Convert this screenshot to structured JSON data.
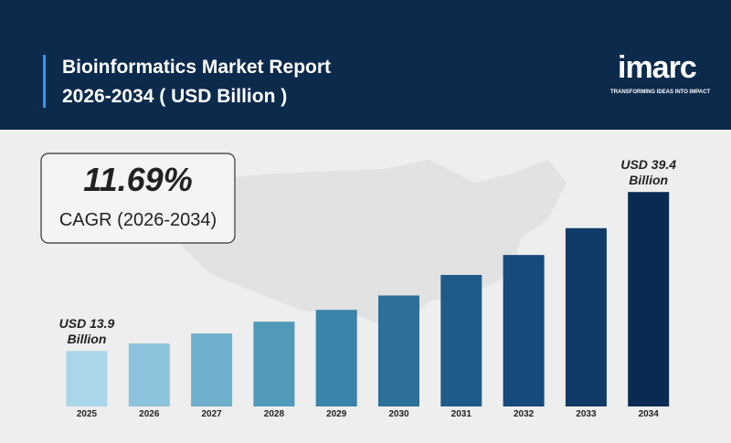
{
  "chart_data": {
    "type": "bar",
    "title": "Bioinformatics Market Report 2026-2034 ( USD Billion )",
    "logo": "imarc",
    "tagline": "TRANSFORMING IDEAS INTO IMPACT",
    "cagr_value": "11.69%",
    "cagr_label": "CAGR (2026-2034)",
    "categories": [
      "2025",
      "2026",
      "2027",
      "2028",
      "2029",
      "2030",
      "2031",
      "2032",
      "2033",
      "2034"
    ],
    "values": [
      13.9,
      15.1,
      16.7,
      18.6,
      20.5,
      22.8,
      26.1,
      29.3,
      33.6,
      39.4
    ],
    "value_labels": [
      "USD 13.9 Billion",
      null,
      null,
      null,
      null,
      null,
      null,
      null,
      null,
      "USD 39.4 Billion"
    ],
    "colors": [
      "#a9d6e9",
      "#8dc3dc",
      "#6eafcc",
      "#5099b9",
      "#3a84aa",
      "#2c6f98",
      "#1f5b8a",
      "#164a7c",
      "#103b69",
      "#0b2a52"
    ],
    "ylim": [
      5,
      45
    ]
  }
}
